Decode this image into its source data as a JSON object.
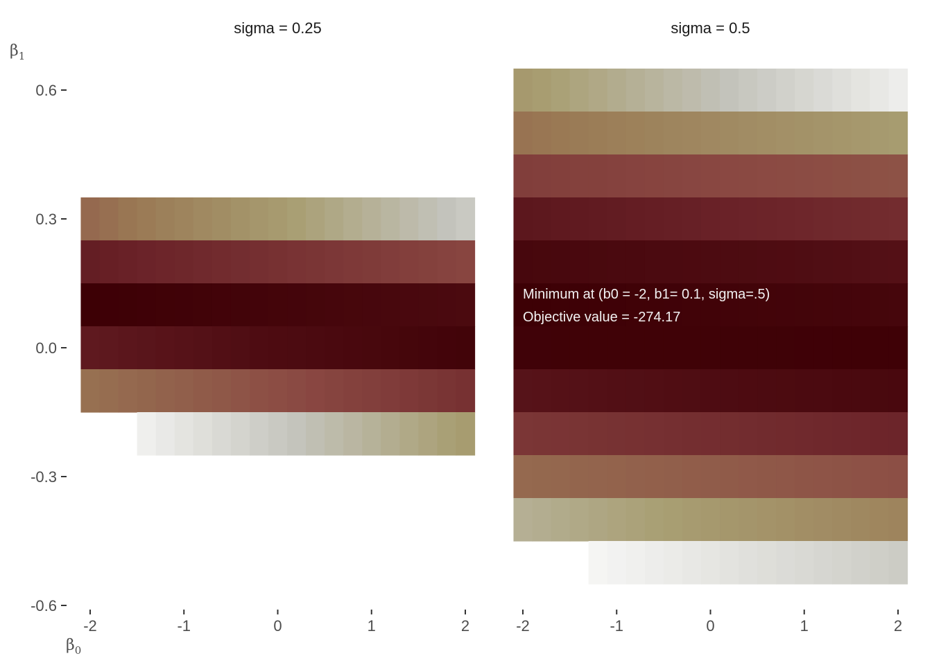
{
  "chart_data": {
    "type": "heatmap",
    "x_label": "β",
    "x_label_sub": "0",
    "y_label": "β",
    "y_label_sub": "1",
    "x_ticks": [
      {
        "value": -2,
        "label": "-2"
      },
      {
        "value": -1,
        "label": "-1"
      },
      {
        "value": 0,
        "label": "0"
      },
      {
        "value": 1,
        "label": "1"
      },
      {
        "value": 2,
        "label": "2"
      }
    ],
    "y_ticks": [
      {
        "value": 0.6,
        "label": "0.6"
      },
      {
        "value": 0.3,
        "label": "0.3"
      },
      {
        "value": 0.0,
        "label": "0.0"
      },
      {
        "value": -0.3,
        "label": "-0.3"
      },
      {
        "value": -0.6,
        "label": "-0.6"
      }
    ],
    "xlim": [
      -2,
      2
    ],
    "ylim": [
      -0.6,
      0.6
    ],
    "grid": false,
    "x_values": [
      -2.0,
      -1.8,
      -1.6,
      -1.4,
      -1.2,
      -1.0,
      -0.8,
      -0.6,
      -0.4,
      -0.2,
      0.0,
      0.2,
      0.4,
      0.6,
      0.8,
      1.0,
      1.2,
      1.4,
      1.6,
      1.8,
      2.0
    ],
    "color_scale": [
      {
        "stop": 0.0,
        "color": "#ffffff"
      },
      {
        "stop": 0.2,
        "color": "#c3c3bb"
      },
      {
        "stop": 0.35,
        "color": "#a89e72"
      },
      {
        "stop": 0.5,
        "color": "#9a7a55"
      },
      {
        "stop": 0.65,
        "color": "#8a4842"
      },
      {
        "stop": 0.8,
        "color": "#6a2228"
      },
      {
        "stop": 0.9,
        "color": "#4e0c12"
      },
      {
        "stop": 1.0,
        "color": "#3d0005"
      }
    ],
    "facets": [
      {
        "title": "sigma = 0.25",
        "rows": [
          {
            "y": 0.3,
            "v0": 0.55,
            "v1": 0.18
          },
          {
            "y": 0.2,
            "v0": 0.82,
            "v1": 0.66
          },
          {
            "y": 0.1,
            "v0": 1.0,
            "v1": 0.92
          },
          {
            "y": 0.0,
            "v0": 0.84,
            "v1": 0.97
          },
          {
            "y": -0.1,
            "v0": 0.53,
            "v1": 0.74
          },
          {
            "y": -0.2,
            "v0": 0.0,
            "v1": 0.36,
            "start": -1.4
          }
        ],
        "annotations": []
      },
      {
        "title": "sigma = 0.5",
        "rows": [
          {
            "y": 0.6,
            "v0": 0.37,
            "v1": 0.06
          },
          {
            "y": 0.5,
            "v0": 0.52,
            "v1": 0.36
          },
          {
            "y": 0.4,
            "v0": 0.69,
            "v1": 0.62
          },
          {
            "y": 0.3,
            "v0": 0.85,
            "v1": 0.76
          },
          {
            "y": 0.2,
            "v0": 0.94,
            "v1": 0.88
          },
          {
            "y": 0.1,
            "v0": 1.0,
            "v1": 0.95
          },
          {
            "y": 0.0,
            "v0": 0.98,
            "v1": 0.99
          },
          {
            "y": -0.1,
            "v0": 0.87,
            "v1": 0.93
          },
          {
            "y": -0.2,
            "v0": 0.72,
            "v1": 0.79
          },
          {
            "y": -0.3,
            "v0": 0.55,
            "v1": 0.63
          },
          {
            "y": -0.4,
            "v0": 0.28,
            "v1": 0.46
          },
          {
            "y": -0.5,
            "v0": 0.0,
            "v1": 0.17,
            "start": -1.2
          }
        ],
        "annotations": [
          {
            "text": "Minimum at (b0 = -2, b1= 0.1, sigma=.5)"
          },
          {
            "text": "Objective value = -274.17"
          }
        ]
      }
    ]
  }
}
